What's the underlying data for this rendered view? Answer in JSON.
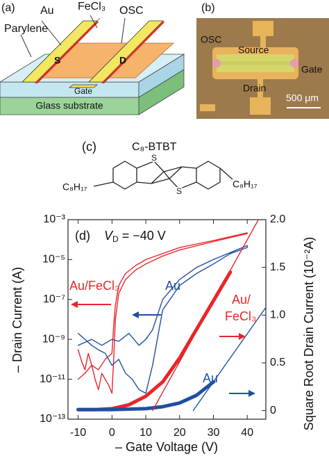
{
  "panel_a": {
    "label": "(a)",
    "au": "Au",
    "fecl3": "FeCl₃",
    "osc": "OSC",
    "parylene": "Parylene",
    "source": "S",
    "drain": "D",
    "gate": "Gate",
    "substrate": "Glass substrate"
  },
  "panel_b": {
    "label": "(b)",
    "osc": "OSC",
    "source": "Source",
    "gate": "Gate",
    "drain": "Drain",
    "scale_bar": "500 μm"
  },
  "panel_c": {
    "label": "(c)",
    "title": "C₈-BTBT",
    "substituent_left": "C₈H₁₇",
    "substituent_right": "C₈H₁₇",
    "sulfur_top": "S",
    "sulfur_bottom": "S"
  },
  "chart_data": {
    "type": "line",
    "panel_label": "(d)",
    "condition_symbol": "V",
    "condition_subscript": "D",
    "condition_text": " = −40 V",
    "xlabel": "– Gate Voltage (V)",
    "ylabel": "– Drain Current (A)",
    "y2label": "Square Root Drain Current (10⁻²A)",
    "xlim": [
      -13,
      45.5
    ],
    "xticks": [
      -10,
      0,
      10,
      20,
      30,
      40
    ],
    "ylim": [
      1e-13,
      0.001
    ],
    "yscale": "log",
    "yticks": [
      {
        "value": 1e-13,
        "label": "10⁻¹³"
      },
      {
        "value": 1e-11,
        "label": "10⁻¹¹"
      },
      {
        "value": 1e-09,
        "label": "10⁻⁹"
      },
      {
        "value": 1e-07,
        "label": "10⁻⁷"
      },
      {
        "value": 1e-05,
        "label": "10⁻⁵"
      },
      {
        "value": 0.001,
        "label": "10⁻³"
      }
    ],
    "y2lim": [
      -0.09,
      2.0
    ],
    "y2ticks": [
      0,
      0.5,
      {
        "value": 1,
        "label": "1.0"
      },
      1.5,
      {
        "value": 2,
        "label": "2.0"
      }
    ],
    "series": [
      {
        "name": "Au/FeCl₃",
        "color": "#e8262a",
        "axis": "y",
        "x": [
          -10,
          -9,
          -8,
          -7,
          -6,
          -5,
          -4,
          -3,
          -2,
          -1,
          0,
          0.5,
          1,
          2,
          4,
          7,
          10,
          15,
          20,
          30,
          40,
          40,
          30,
          20,
          10,
          7,
          4,
          2,
          1,
          0.5,
          0,
          -2,
          -4,
          -6,
          -8,
          -10
        ],
        "values": [
          3e-10,
          8e-11,
          3e-11,
          2e-10,
          5e-11,
          1e-11,
          3e-12,
          2e-11,
          1e-11,
          5e-12,
          2e-12,
          1e-10,
          1e-08,
          2e-07,
          1e-06,
          3e-06,
          6e-06,
          1.5e-05,
          3e-05,
          8e-05,
          0.0002,
          0.00022,
          9e-05,
          4e-05,
          1e-05,
          5e-06,
          2e-06,
          5e-07,
          5e-08,
          5e-09,
          2e-10,
          1e-10,
          3e-11,
          5e-11,
          2e-11,
          1e-11
        ]
      },
      {
        "name": "Au",
        "color": "#1f4fa0",
        "axis": "y",
        "x": [
          -10,
          -8,
          -6,
          -4,
          -2,
          0,
          2,
          4,
          6,
          8,
          10,
          12,
          15,
          20,
          25,
          30,
          35,
          40,
          40,
          30,
          25,
          20,
          15,
          12,
          10,
          8,
          5,
          2,
          0,
          -3,
          -6,
          -10
        ],
        "values": [
          2e-09,
          1e-09,
          5e-10,
          3e-10,
          2e-10,
          5e-11,
          1e-10,
          2e-11,
          1e-11,
          3e-12,
          2e-12,
          5e-11,
          3e-08,
          5e-07,
          2e-06,
          6e-06,
          2e-05,
          4e-05,
          5e-05,
          1e-05,
          4e-06,
          1e-06,
          1e-07,
          3e-09,
          1e-09,
          5e-10,
          2e-09,
          8e-10,
          1e-09,
          5e-10,
          1e-09,
          5e-10
        ]
      },
      {
        "color": "#e8262a",
        "axis": "y2",
        "marker": "dot",
        "x": [
          -10,
          -5,
          0,
          5,
          10,
          15,
          20,
          25,
          30,
          35
        ],
        "values": [
          0.01,
          0.01,
          0.02,
          0.06,
          0.15,
          0.3,
          0.55,
          0.85,
          1.15,
          1.45
        ]
      },
      {
        "color": "#1f4fa0",
        "axis": "y2",
        "marker": "dot",
        "x": [
          -10,
          0,
          10,
          15,
          20,
          25,
          30
        ],
        "values": [
          0.01,
          0.01,
          0.02,
          0.04,
          0.08,
          0.16,
          0.3
        ]
      },
      {
        "color": "#e8262a",
        "axis": "y2",
        "x": [
          12,
          43.3
        ],
        "values": [
          0,
          2.0
        ]
      },
      {
        "color": "#1f4fa0",
        "axis": "y2",
        "x": [
          24,
          45.5
        ],
        "values": [
          0,
          1.08
        ]
      }
    ],
    "annotations": [
      {
        "text": "Au/",
        "color": "#e8262a"
      },
      {
        "text": "FeCl₃",
        "color": "#e8262a"
      },
      {
        "text": "Au",
        "color": "#1f4fa0"
      }
    ]
  }
}
